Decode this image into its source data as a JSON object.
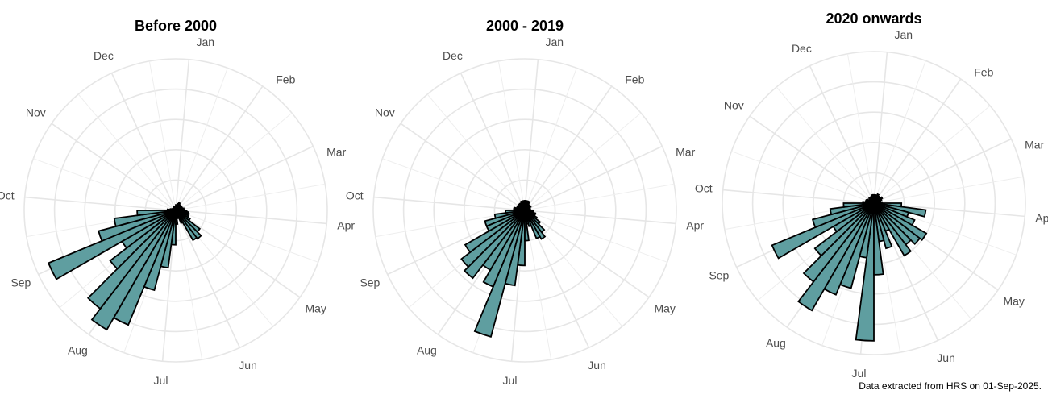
{
  "caption": "Data extracted from HRS on 01-Sep-2025.",
  "colors": {
    "bar_fill": "#5f9ea0",
    "bar_stroke": "#000000",
    "grid": "#e6e6e6"
  },
  "month_labels": [
    "Jan",
    "Feb",
    "Mar",
    "Apr",
    "May",
    "Jun",
    "Jul",
    "Aug",
    "Sep",
    "Oct",
    "Nov",
    "Dec"
  ],
  "chart_data": [
    {
      "type": "bar",
      "coord": "polar",
      "title": "Before 2000",
      "categories": [
        "Jul-w1",
        "Jul-w2",
        "Jul-w3",
        "Jul-w4",
        "Aug-w1",
        "Aug-w2",
        "Aug-w3",
        "Aug-w4",
        "Sep-w1",
        "Sep-w2",
        "Sep-w3",
        "Sep-w4",
        "Oct-w1",
        "Oct-w2",
        "Oct-w3",
        "Oct-w4",
        "Nov-w1",
        "Nov-w2",
        "Nov-w3",
        "Nov-w4",
        "Dec-w1",
        "Dec-w2",
        "Dec-w3",
        "Dec-w4",
        "Jan-w1",
        "Jan-w2",
        "Jan-w3",
        "Jan-w4",
        "Feb-w1",
        "Feb-w2",
        "Feb-w3",
        "Feb-w4",
        "Mar-w1",
        "Mar-w2",
        "Mar-w3",
        "Mar-w4",
        "Apr-w1",
        "Apr-w2",
        "Apr-w3",
        "Apr-w4",
        "May-w1",
        "May-w2",
        "May-w3",
        "May-w4",
        "Jun-w1",
        "Jun-w2",
        "Jun-w3",
        "Jun-w4"
      ],
      "values": [
        0.25,
        0.42,
        0.6,
        0.9,
        1.0,
        0.9,
        0.6,
        0.45,
        1.0,
        0.58,
        0.45,
        0.28,
        0.06,
        0.04,
        0.03,
        0.02,
        0.02,
        0.02,
        0.02,
        0.02,
        0.03,
        0.03,
        0.03,
        0.03,
        0.04,
        0.04,
        0.05,
        0.06,
        0.05,
        0.05,
        0.05,
        0.04,
        0.05,
        0.05,
        0.06,
        0.06,
        0.08,
        0.09,
        0.1,
        0.1,
        0.12,
        0.22,
        0.26,
        0.25,
        0.1,
        0.06,
        0.05,
        0.1
      ],
      "ylim": [
        0,
        1.1
      ],
      "grid": true
    },
    {
      "type": "bar",
      "coord": "polar",
      "title": "2000 - 2019",
      "categories": [
        "Jul-w1",
        "Jul-w2",
        "Jul-w3",
        "Jul-w4",
        "Aug-w1",
        "Aug-w2",
        "Aug-w3",
        "Aug-w4",
        "Sep-w1",
        "Sep-w2",
        "Sep-w3",
        "Sep-w4",
        "Oct-w1",
        "Oct-w2",
        "Oct-w3",
        "Oct-w4",
        "Nov-w1",
        "Nov-w2",
        "Nov-w3",
        "Nov-w4",
        "Dec-w1",
        "Dec-w2",
        "Dec-w3",
        "Dec-w4",
        "Jan-w1",
        "Jan-w2",
        "Jan-w3",
        "Jan-w4",
        "Feb-w1",
        "Feb-w2",
        "Feb-w3",
        "Feb-w4",
        "Mar-w1",
        "Mar-w2",
        "Mar-w3",
        "Mar-w4",
        "Apr-w1",
        "Apr-w2",
        "Apr-w3",
        "Apr-w4",
        "May-w1",
        "May-w2",
        "May-w3",
        "May-w4",
        "Jun-w1",
        "Jun-w2",
        "Jun-w3",
        "Jun-w4"
      ],
      "values": [
        0.4,
        0.55,
        0.95,
        0.6,
        0.5,
        0.62,
        0.58,
        0.5,
        0.3,
        0.3,
        0.22,
        0.14,
        0.08,
        0.08,
        0.06,
        0.06,
        0.05,
        0.06,
        0.06,
        0.06,
        0.06,
        0.07,
        0.06,
        0.07,
        0.07,
        0.07,
        0.07,
        0.07,
        0.05,
        0.05,
        0.05,
        0.05,
        0.04,
        0.04,
        0.04,
        0.04,
        0.06,
        0.06,
        0.08,
        0.08,
        0.1,
        0.14,
        0.2,
        0.24,
        0.22,
        0.12,
        0.1,
        0.22
      ],
      "ylim": [
        0,
        1.1
      ],
      "grid": true
    },
    {
      "type": "bar",
      "coord": "polar",
      "title": "2020 onwards",
      "categories": [
        "Jul-w1",
        "Jul-w2",
        "Jul-w3",
        "Jul-w4",
        "Aug-w1",
        "Aug-w2",
        "Aug-w3",
        "Aug-w4",
        "Sep-w1",
        "Sep-w2",
        "Sep-w3",
        "Sep-w4",
        "Oct-w1",
        "Oct-w2",
        "Oct-w3",
        "Oct-w4",
        "Nov-w1",
        "Nov-w2",
        "Nov-w3",
        "Nov-w4",
        "Dec-w1",
        "Dec-w2",
        "Dec-w3",
        "Dec-w4",
        "Jan-w1",
        "Jan-w2",
        "Jan-w3",
        "Jan-w4",
        "Feb-w1",
        "Feb-w2",
        "Feb-w3",
        "Feb-w4",
        "Mar-w1",
        "Mar-w2",
        "Mar-w3",
        "Mar-w4",
        "Apr-w1",
        "Apr-w2",
        "Apr-w3",
        "Apr-w4",
        "May-w1",
        "May-w2",
        "May-w3",
        "May-w4",
        "Jun-w1",
        "Jun-w2",
        "Jun-w3",
        "Jun-w4"
      ],
      "values": [
        1.0,
        0.4,
        0.64,
        0.72,
        0.9,
        0.72,
        0.54,
        0.34,
        0.8,
        0.46,
        0.32,
        0.22,
        0.08,
        0.06,
        0.06,
        0.05,
        0.04,
        0.04,
        0.05,
        0.05,
        0.05,
        0.05,
        0.06,
        0.06,
        0.05,
        0.06,
        0.06,
        0.07,
        0.06,
        0.06,
        0.06,
        0.07,
        0.06,
        0.05,
        0.05,
        0.06,
        0.2,
        0.38,
        0.26,
        0.32,
        0.44,
        0.42,
        0.38,
        0.44,
        0.22,
        0.34,
        0.28,
        0.52
      ],
      "ylim": [
        0,
        1.1
      ],
      "grid": true
    }
  ]
}
